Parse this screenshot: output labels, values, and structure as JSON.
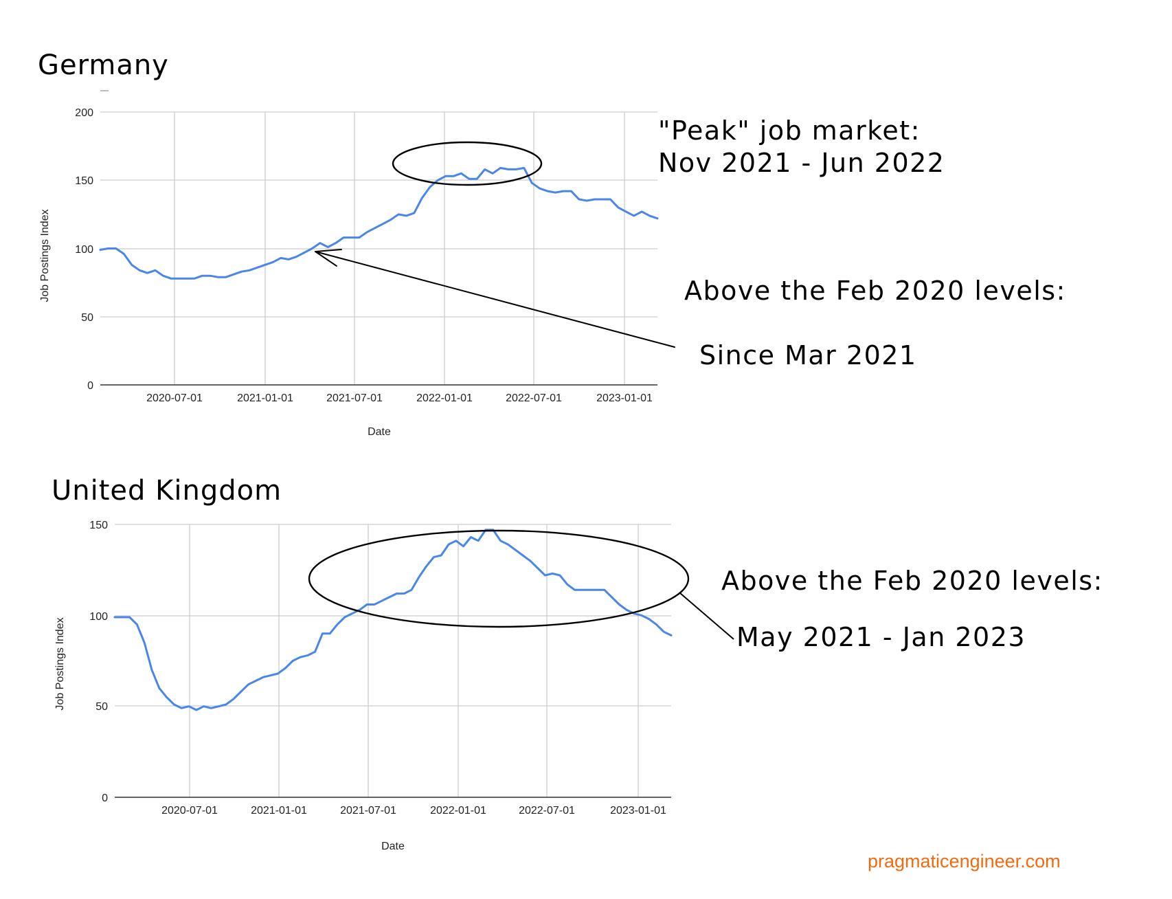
{
  "page": {
    "watermark": "pragmaticengineer.com",
    "colors": {
      "line": "#4a86e8",
      "grid": "#cccccc",
      "axis": "#333333",
      "annotation": "#000000",
      "watermark": "#f26b0f"
    }
  },
  "charts": {
    "germany": {
      "title": "Germany",
      "ylabel": "Job Postings Index",
      "xlabel": "Date",
      "yticks": [
        "0",
        "50",
        "100",
        "150",
        "200"
      ],
      "xticks": [
        "2020-07-01",
        "2021-01-01",
        "2021-07-01",
        "2022-01-01",
        "2022-07-01",
        "2023-01-01"
      ],
      "annotations": {
        "peak_line1": "\"Peak\" job market:",
        "peak_line2": "Nov 2021 - Jun 2022",
        "above_line1": "Above the Feb 2020 levels:",
        "above_line2": "Since Mar 2021"
      }
    },
    "uk": {
      "title": "United Kingdom",
      "ylabel": "Job Postings Index",
      "xlabel": "Date",
      "yticks": [
        "0",
        "50",
        "100",
        "150"
      ],
      "xticks": [
        "2020-07-01",
        "2021-01-01",
        "2021-07-01",
        "2022-01-01",
        "2022-07-01",
        "2023-01-01"
      ],
      "annotations": {
        "above_line1": "Above the Feb 2020 levels:",
        "above_line2": "May 2021 - Jan 2023"
      }
    }
  },
  "chart_data": [
    {
      "type": "line",
      "title": "Germany",
      "xlabel": "Date",
      "ylabel": "Job Postings Index",
      "ylim": [
        0,
        200
      ],
      "grid": true,
      "x_start": "2020-02-01",
      "x_step": "half-month",
      "x_tick_labels": [
        "2020-07-01",
        "2021-01-01",
        "2021-07-01",
        "2022-01-01",
        "2022-07-01",
        "2023-01-01"
      ],
      "series": [
        {
          "name": "Germany",
          "values": [
            99,
            100,
            100,
            96,
            88,
            84,
            82,
            84,
            80,
            78,
            78,
            78,
            78,
            80,
            80,
            79,
            79,
            81,
            83,
            84,
            86,
            88,
            90,
            93,
            92,
            94,
            97,
            100,
            104,
            101,
            104,
            108,
            108,
            108,
            112,
            115,
            118,
            121,
            125,
            124,
            126,
            137,
            145,
            150,
            153,
            153,
            155,
            151,
            151,
            158,
            155,
            159,
            158,
            158,
            159,
            148,
            144,
            142,
            141,
            142,
            142,
            136,
            135,
            136,
            136,
            136,
            130,
            127,
            124,
            127,
            124,
            122
          ]
        }
      ],
      "annotations": [
        "\"Peak\" job market: Nov 2021 - Jun 2022",
        "Above the Feb 2020 levels: Since Mar 2021"
      ]
    },
    {
      "type": "line",
      "title": "United Kingdom",
      "xlabel": "Date",
      "ylabel": "Job Postings Index",
      "ylim": [
        0,
        150
      ],
      "grid": true,
      "x_start": "2020-02-01",
      "x_step": "half-month",
      "x_tick_labels": [
        "2020-07-01",
        "2021-01-01",
        "2021-07-01",
        "2022-01-01",
        "2022-07-01",
        "2023-01-01"
      ],
      "series": [
        {
          "name": "United Kingdom",
          "values": [
            99,
            99,
            99,
            95,
            85,
            70,
            60,
            55,
            51,
            49,
            50,
            48,
            50,
            49,
            50,
            51,
            54,
            58,
            62,
            64,
            66,
            67,
            68,
            71,
            75,
            77,
            78,
            80,
            90,
            90,
            95,
            99,
            101,
            103,
            106,
            106,
            108,
            110,
            112,
            112,
            114,
            121,
            127,
            132,
            133,
            139,
            141,
            138,
            143,
            141,
            147,
            147,
            141,
            139,
            136,
            133,
            130,
            126,
            122,
            123,
            122,
            117,
            114,
            114,
            114,
            114,
            114,
            110,
            106,
            103,
            101,
            100,
            98,
            95,
            91,
            89
          ]
        }
      ],
      "annotations": [
        "Above the Feb 2020 levels: May 2021 - Jan 2023"
      ]
    }
  ]
}
